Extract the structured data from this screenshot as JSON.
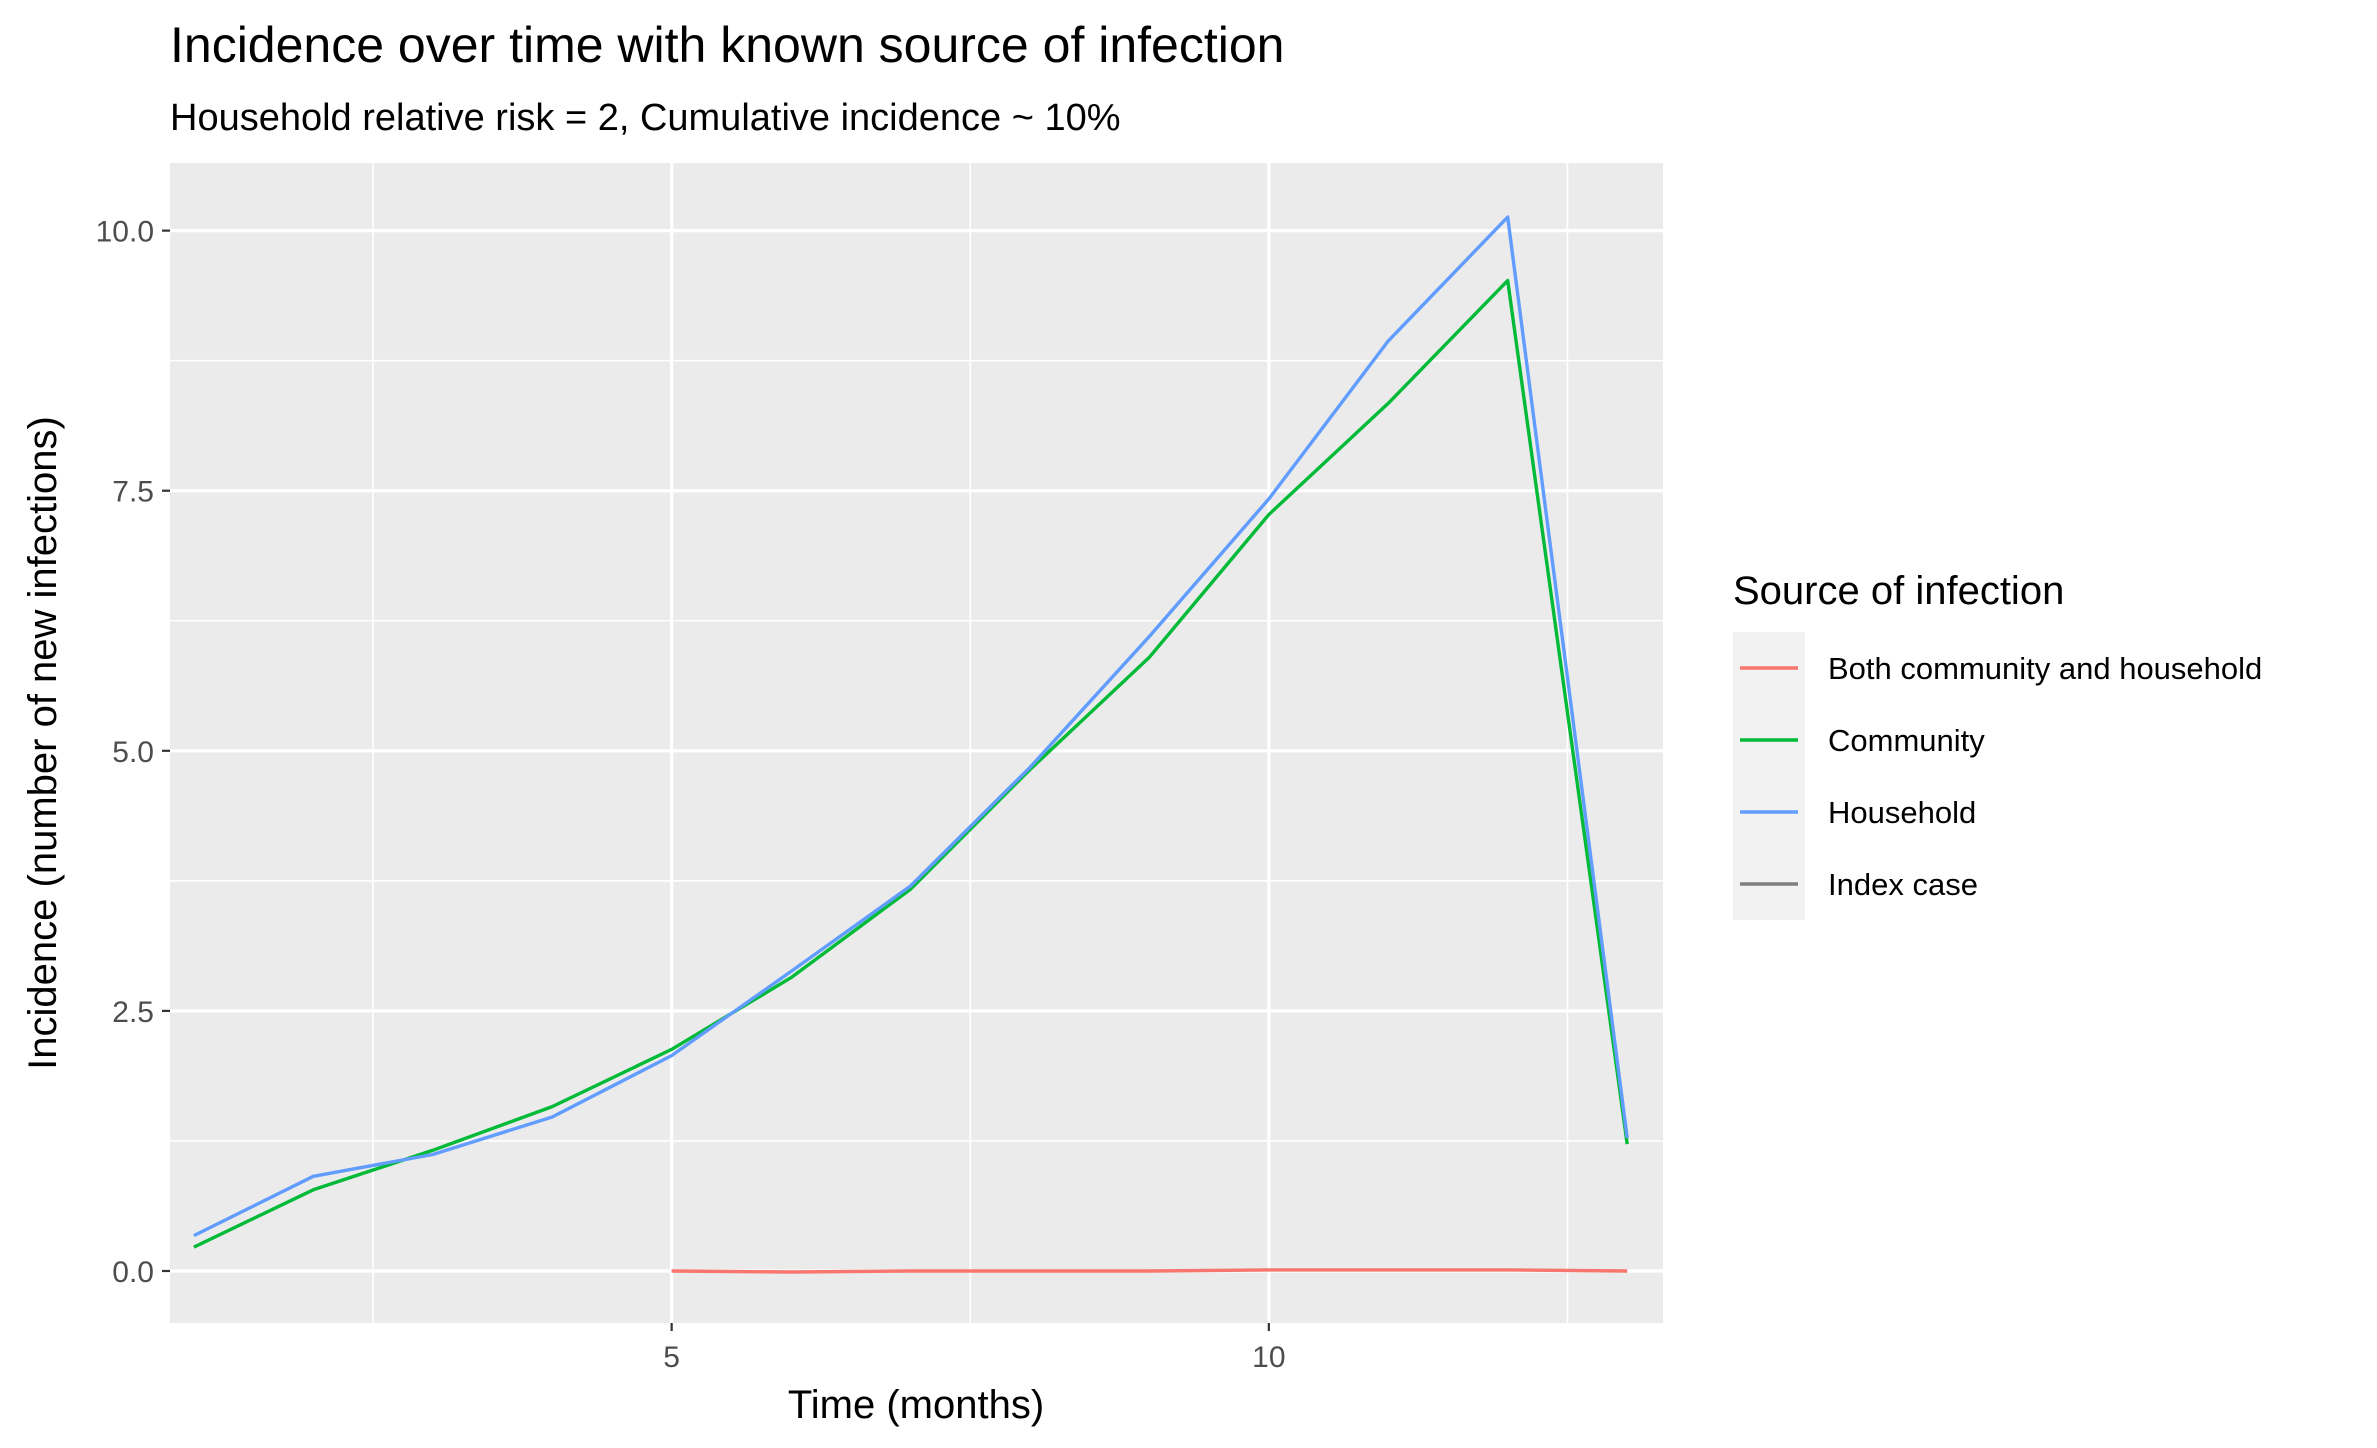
{
  "chart_data": {
    "type": "line",
    "title": "Incidence over time with known source of infection",
    "subtitle": "Household relative risk = 2, Cumulative incidence ~ 10%",
    "xlabel": "Time (months)",
    "ylabel": "Incidence (number of new infections)",
    "xlim": [
      0.8,
      13.3
    ],
    "ylim": [
      -0.5,
      10.65
    ],
    "x_ticks": [
      5,
      10
    ],
    "x_tick_labels": [
      "5",
      "10"
    ],
    "y_ticks": [
      0,
      2.5,
      5,
      7.5,
      10
    ],
    "y_tick_labels": [
      "0.0",
      "2.5",
      "5.0",
      "7.5",
      "10.0"
    ],
    "grid": true,
    "legend": {
      "title": "Source of infection",
      "placement": "right",
      "entries": [
        "Both community and household",
        "Community",
        "Household",
        "Index case"
      ]
    },
    "series": [
      {
        "name": "Both community and household",
        "color": "#F8766D",
        "x": [
          5,
          6,
          7,
          8,
          9,
          10,
          11,
          12,
          13
        ],
        "y": [
          0.0,
          -0.01,
          0.0,
          0.0,
          0.0,
          0.01,
          0.01,
          0.01,
          0.0
        ]
      },
      {
        "name": "Community",
        "color": "#00BA38",
        "x": [
          1,
          2,
          3,
          4,
          5,
          6,
          7,
          8,
          9,
          10,
          11,
          12,
          13
        ],
        "y": [
          0.23,
          0.78,
          1.16,
          1.58,
          2.13,
          2.82,
          3.67,
          4.82,
          5.9,
          7.27,
          8.34,
          9.52,
          1.22
        ]
      },
      {
        "name": "Household",
        "color": "#619CFF",
        "x": [
          1,
          2,
          3,
          4,
          5,
          6,
          7,
          8,
          9,
          10,
          11,
          12,
          13
        ],
        "y": [
          0.34,
          0.91,
          1.12,
          1.48,
          2.07,
          2.88,
          3.7,
          4.84,
          6.1,
          7.42,
          8.94,
          10.13,
          1.28
        ]
      },
      {
        "name": "Index case",
        "color": "#7F7F7F",
        "x": [],
        "y": []
      }
    ]
  }
}
